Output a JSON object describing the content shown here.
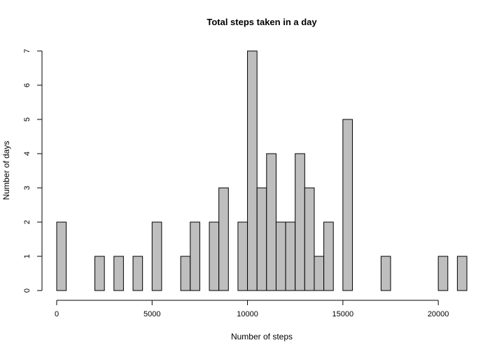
{
  "chart_data": {
    "type": "bar",
    "title": "Total steps taken in a day",
    "xlabel": "Number of steps",
    "ylabel": "Number of days",
    "bin_width": 500,
    "bin_start": 0,
    "counts": [
      2,
      0,
      0,
      0,
      1,
      0,
      1,
      0,
      1,
      0,
      2,
      0,
      0,
      1,
      2,
      0,
      2,
      3,
      0,
      2,
      7,
      3,
      4,
      2,
      2,
      4,
      3,
      1,
      2,
      0,
      5,
      0,
      0,
      0,
      1,
      0,
      0,
      0,
      0,
      0,
      1,
      0,
      1
    ],
    "xlim": [
      0,
      21500
    ],
    "ylim": [
      0,
      7
    ],
    "xticks": [
      0,
      5000,
      10000,
      15000,
      20000
    ],
    "yticks": [
      0,
      1,
      2,
      3,
      4,
      5,
      6,
      7
    ],
    "grid": false,
    "bar_color": "#bebebe",
    "edge_color": "#000000"
  }
}
